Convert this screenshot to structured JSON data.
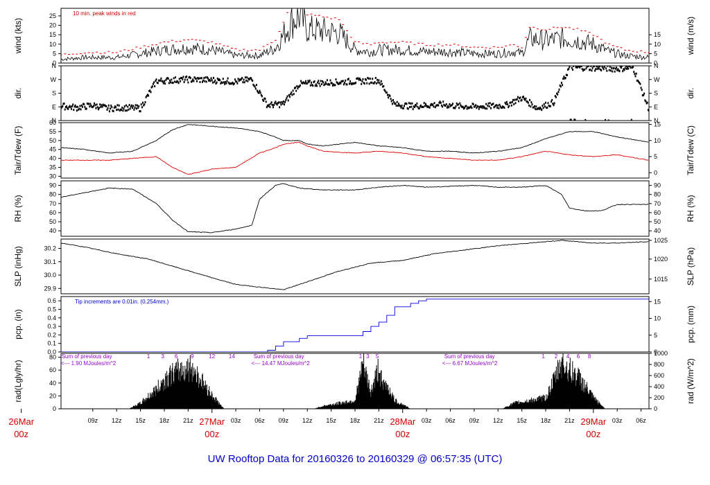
{
  "title": "UW Rooftop Data for 20160326  to  20160329 @ 06:57:35  (UTC)",
  "colors": {
    "trace": "#000000",
    "peak": "#dd0000",
    "dew": "#dd0000",
    "pcp": "#0000dd",
    "note_red": "#cc0000",
    "note_blue": "#0000cc",
    "note_purple": "#9900cc",
    "title": "#0000cc",
    "date": "#dd0000"
  },
  "x_axis": {
    "start_hour": 5,
    "end_hour": 79,
    "hour_ticks": [
      "09z",
      "12z",
      "15z",
      "18z",
      "21z",
      "03z",
      "06z",
      "09z",
      "12z",
      "15z",
      "18z",
      "21z",
      "03z",
      "06z",
      "09z",
      "12z",
      "15z",
      "18z",
      "21z",
      "03z",
      "06z"
    ],
    "hour_tick_values": [
      9,
      12,
      15,
      18,
      21,
      27,
      30,
      33,
      36,
      39,
      42,
      45,
      51,
      54,
      57,
      60,
      63,
      66,
      69,
      75,
      78
    ],
    "date_labels": [
      {
        "day": "26Mar",
        "hour": "00z",
        "x": 0
      },
      {
        "day": "27Mar",
        "hour": "00z",
        "x": 24
      },
      {
        "day": "28Mar",
        "hour": "00z",
        "x": 48
      },
      {
        "day": "29Mar",
        "hour": "00z",
        "x": 72
      }
    ]
  },
  "chart_data": [
    {
      "type": "line",
      "panel": "wind",
      "ylabel_left": "wind (kts)",
      "ylabel_right": "wind (m/s)",
      "left_ticks": [
        "0",
        "5",
        "10",
        "15",
        "20",
        "25"
      ],
      "left_tick_values": [
        0,
        5,
        10,
        15,
        20,
        25
      ],
      "right_ticks": [
        "0",
        "5",
        "10",
        "15"
      ],
      "right_tick_values": [
        0,
        5,
        10,
        15
      ],
      "ylim": [
        0,
        29
      ],
      "note": "10 min. peak winds in red",
      "series": [
        {
          "x": [
            5,
            8,
            12,
            15,
            18,
            21,
            24,
            27,
            30,
            32,
            33,
            34,
            35,
            36,
            38,
            40,
            42,
            44,
            45,
            48,
            51,
            54,
            57,
            60,
            62,
            63,
            64,
            66,
            68,
            70,
            72,
            74,
            76,
            79
          ],
          "values": [
            2,
            3,
            3,
            5,
            7,
            8,
            7,
            4,
            4,
            8,
            15,
            22,
            25,
            18,
            17,
            16,
            7,
            6,
            7,
            7,
            6,
            6,
            5,
            5,
            6,
            5,
            13,
            12,
            13,
            12,
            10,
            6,
            4,
            3
          ]
        }
      ]
    },
    {
      "type": "scatter",
      "panel": "dir",
      "ylabel_left": "dir.",
      "ylabel_right": "dir.",
      "left_ticks": [
        "N",
        "E",
        "S",
        "W",
        "N"
      ],
      "left_tick_values": [
        0,
        90,
        180,
        270,
        360
      ],
      "right_ticks": [
        "N",
        "E",
        "S",
        "W",
        "N"
      ],
      "right_tick_values": [
        0,
        90,
        180,
        270,
        360
      ],
      "ylim": [
        0,
        360
      ],
      "series": [
        {
          "x": [
            5,
            7,
            9,
            11,
            13,
            15,
            17,
            19,
            21,
            23,
            25,
            27,
            29,
            31,
            33,
            35,
            37,
            39,
            41,
            43,
            45,
            47,
            49,
            51,
            53,
            55,
            57,
            59,
            61,
            63,
            65,
            67,
            69,
            71,
            73,
            75,
            77,
            79
          ],
          "values": [
            95,
            85,
            100,
            80,
            85,
            80,
            260,
            265,
            270,
            268,
            262,
            255,
            270,
            100,
            110,
            240,
            245,
            250,
            255,
            260,
            265,
            105,
            95,
            100,
            105,
            95,
            90,
            95,
            100,
            150,
            80,
            120,
            350,
            348,
            345,
            340,
            350,
            75
          ]
        }
      ]
    },
    {
      "type": "line",
      "panel": "temp",
      "ylabel_left": "Tair/Tdew (F)",
      "ylabel_right": "Tair/Tdew (C)",
      "left_ticks": [
        "30",
        "35",
        "40",
        "45",
        "50",
        "55",
        "60"
      ],
      "left_tick_values": [
        30,
        35,
        40,
        45,
        50,
        55,
        60
      ],
      "right_ticks": [
        "0",
        "5",
        "10",
        "15"
      ],
      "right_tick_values": [
        32,
        41,
        50,
        59
      ],
      "ylim": [
        29,
        60
      ],
      "series": [
        {
          "name": "Tair",
          "x": [
            5,
            8,
            11,
            14,
            17,
            19,
            21,
            24,
            27,
            30,
            32,
            33,
            35,
            36,
            38,
            42,
            45,
            48,
            51,
            54,
            57,
            60,
            63,
            66,
            69,
            72,
            75,
            79
          ],
          "values": [
            46,
            45,
            43,
            44,
            50,
            56,
            59,
            58,
            57,
            55,
            52,
            50,
            50,
            48,
            47,
            49,
            47,
            46,
            44,
            44,
            43,
            44,
            46,
            51,
            55,
            55,
            52,
            49
          ]
        },
        {
          "name": "Tdew",
          "x": [
            5,
            8,
            11,
            14,
            17,
            19,
            21,
            24,
            27,
            30,
            32,
            33,
            35,
            36,
            38,
            42,
            45,
            48,
            51,
            54,
            57,
            60,
            63,
            66,
            69,
            72,
            75,
            79
          ],
          "values": [
            39,
            39,
            39,
            40,
            41,
            35,
            31,
            34,
            35,
            43,
            46,
            48,
            49,
            47,
            44,
            43,
            44,
            43,
            41,
            40,
            39,
            39,
            41,
            44,
            42,
            41,
            42,
            39
          ]
        }
      ]
    },
    {
      "type": "line",
      "panel": "rh",
      "ylabel_left": "RH (%)",
      "ylabel_right": "RH (%)",
      "left_ticks": [
        "40",
        "50",
        "60",
        "70",
        "80",
        "90"
      ],
      "left_tick_values": [
        40,
        50,
        60,
        70,
        80,
        90
      ],
      "right_ticks": [
        "40",
        "50",
        "60",
        "70",
        "80",
        "90"
      ],
      "right_tick_values": [
        40,
        50,
        60,
        70,
        80,
        90
      ],
      "ylim": [
        34,
        95
      ],
      "series": [
        {
          "x": [
            5,
            8,
            11,
            14,
            17,
            19,
            21,
            24,
            27,
            29,
            30,
            32,
            33,
            35,
            38,
            42,
            45,
            48,
            51,
            54,
            57,
            60,
            63,
            66,
            68,
            69,
            71,
            73,
            75,
            79
          ],
          "values": [
            77,
            82,
            87,
            86,
            70,
            52,
            39,
            38,
            42,
            46,
            75,
            90,
            92,
            87,
            85,
            85,
            88,
            90,
            88,
            89,
            90,
            88,
            88,
            90,
            80,
            65,
            62,
            62,
            69,
            69
          ]
        }
      ]
    },
    {
      "type": "line",
      "panel": "slp",
      "ylabel_left": "SLP (inHg)",
      "ylabel_right": "SLP (hPa)",
      "left_ticks": [
        "29.9",
        "30.0",
        "30.1",
        "30.2"
      ],
      "left_tick_values": [
        29.9,
        30.0,
        30.1,
        30.2
      ],
      "right_ticks": [
        "1015",
        "1020",
        "1025"
      ],
      "right_tick_values": [
        29.97,
        30.12,
        30.26
      ],
      "ylim": [
        29.86,
        30.27
      ],
      "series": [
        {
          "x": [
            5,
            8,
            12,
            16,
            20,
            24,
            27,
            30,
            33,
            36,
            40,
            44,
            48,
            52,
            56,
            60,
            64,
            68,
            70,
            72,
            75,
            79
          ],
          "values": [
            30.24,
            30.21,
            30.16,
            30.12,
            30.05,
            29.98,
            29.93,
            29.91,
            29.89,
            29.95,
            30.03,
            30.09,
            30.11,
            30.16,
            30.19,
            30.22,
            30.24,
            30.26,
            30.25,
            30.24,
            30.24,
            30.25
          ]
        }
      ]
    },
    {
      "type": "line",
      "panel": "pcp",
      "ylabel_left": "pcp. (in)",
      "ylabel_right": "pcp. (mm)",
      "left_ticks": [
        "0.0",
        "0.1",
        "0.2",
        "0.3",
        "0.4",
        "0.5",
        "0.6"
      ],
      "left_tick_values": [
        0,
        0.1,
        0.2,
        0.3,
        0.4,
        0.5,
        0.6
      ],
      "right_ticks": [
        "0",
        "5",
        "10",
        "15"
      ],
      "right_tick_values": [
        0,
        0.197,
        0.394,
        0.591
      ],
      "ylim": [
        0,
        0.65
      ],
      "note": "Tip increments are 0.01in. (0.254mm.)",
      "series": [
        {
          "x": [
            5,
            26,
            30,
            31,
            32,
            33,
            35,
            36,
            38,
            39,
            40,
            42,
            43,
            44,
            45,
            46,
            47,
            48,
            49,
            50,
            51,
            79
          ],
          "values": [
            0,
            0,
            0,
            0.02,
            0.07,
            0.12,
            0.16,
            0.19,
            0.19,
            0.19,
            0.19,
            0.19,
            0.24,
            0.3,
            0.35,
            0.43,
            0.53,
            0.53,
            0.57,
            0.6,
            0.62,
            0.62
          ]
        }
      ]
    },
    {
      "type": "area",
      "panel": "rad",
      "ylabel_left": "rad(Lgly/hr)",
      "ylabel_right": "rad (W/m^2)",
      "left_ticks": [
        "0",
        "20",
        "40",
        "60",
        "80"
      ],
      "left_tick_values": [
        0,
        20,
        40,
        60,
        80
      ],
      "right_ticks": [
        "0",
        "200",
        "400",
        "600",
        "800",
        "1000"
      ],
      "right_tick_values": [
        0,
        17.2,
        34.4,
        51.6,
        68.8,
        86
      ],
      "ylim": [
        0,
        86
      ],
      "series": [
        {
          "x": [
            13.5,
            15,
            17,
            18.5,
            20,
            21.5,
            23,
            24,
            25.5,
            36.8,
            38,
            40,
            42,
            43,
            44,
            45,
            45.5,
            46,
            47,
            48,
            49,
            60.5,
            62,
            64,
            66,
            67,
            68,
            69,
            70,
            71,
            72,
            73.5
          ],
          "values": [
            0,
            10,
            35,
            60,
            70,
            75,
            45,
            25,
            0,
            0,
            5,
            10,
            15,
            80,
            30,
            75,
            40,
            45,
            15,
            8,
            0,
            0,
            10,
            15,
            20,
            50,
            85,
            70,
            60,
            40,
            20,
            0
          ]
        }
      ],
      "summaries": [
        {
          "line1": "Sum of previous day",
          "line2": "<--- 1.90 MJoules/m^2",
          "x": 0,
          "ticks": [
            "1",
            "3",
            "6",
            "9",
            "12",
            "14"
          ],
          "tick_x": [
            16,
            17.8,
            19.5,
            21.5,
            24,
            26.5
          ]
        },
        {
          "line1": "Sum of previous day",
          "line2": "<--- 14.47 MJoules/m^2",
          "x": 24,
          "ticks": [
            "1",
            "3",
            "5"
          ],
          "tick_x": [
            42.7,
            43.6,
            44.8
          ]
        },
        {
          "line1": "Sum of previous day",
          "line2": "<--- 6.67 MJoules/m^2",
          "x": 48,
          "ticks": [
            "1",
            "2",
            "4",
            "6",
            "8"
          ],
          "tick_x": [
            65.7,
            67.3,
            68.8,
            70.1,
            71.5
          ]
        }
      ]
    }
  ]
}
